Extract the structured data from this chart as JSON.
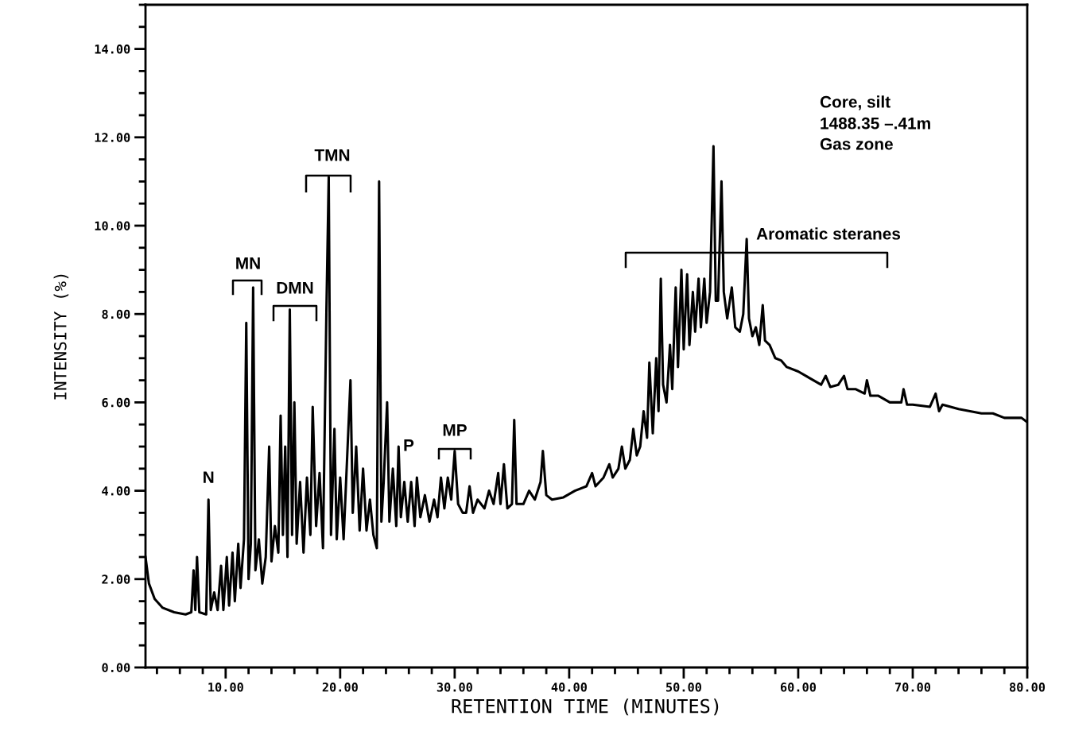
{
  "chart_data": {
    "type": "line",
    "xlabel": "RETENTION TIME (MINUTES)",
    "ylabel": "INTENSITY (%)",
    "xlim": [
      3,
      80
    ],
    "ylim": [
      0,
      15
    ],
    "xticks": [
      {
        "value": 10,
        "label": "10.00"
      },
      {
        "value": 20,
        "label": "20.00"
      },
      {
        "value": 30,
        "label": "30.00"
      },
      {
        "value": 40,
        "label": "40.00"
      },
      {
        "value": 50,
        "label": "50.00"
      },
      {
        "value": 60,
        "label": "60.00"
      },
      {
        "value": 70,
        "label": "70.00"
      },
      {
        "value": 80,
        "label": "80.00"
      }
    ],
    "yticks": [
      {
        "value": 0,
        "label": "0.00"
      },
      {
        "value": 2,
        "label": "2.00"
      },
      {
        "value": 4,
        "label": "4.00"
      },
      {
        "value": 6,
        "label": "6.00"
      },
      {
        "value": 8,
        "label": "8.00"
      },
      {
        "value": 10,
        "label": "10.00"
      },
      {
        "value": 12,
        "label": "12.00"
      },
      {
        "value": 14,
        "label": "14.00"
      }
    ],
    "grid": false,
    "legend": false,
    "marker": "none",
    "line_style": "solid",
    "series": [
      {
        "color": "#000000",
        "x": [
          3.0,
          3.3,
          3.8,
          4.5,
          5.5,
          6.5,
          7.0,
          7.2,
          7.35,
          7.5,
          7.7,
          8.3,
          8.5,
          8.7,
          9.0,
          9.3,
          9.6,
          9.8,
          10.1,
          10.3,
          10.6,
          10.8,
          11.1,
          11.3,
          11.6,
          11.8,
          12.0,
          12.2,
          12.4,
          12.6,
          12.9,
          13.2,
          13.5,
          13.8,
          14.0,
          14.3,
          14.6,
          14.8,
          15.0,
          15.2,
          15.4,
          15.6,
          15.8,
          16.0,
          16.2,
          16.5,
          16.8,
          17.1,
          17.4,
          17.6,
          17.9,
          18.2,
          18.5,
          18.8,
          19.0,
          19.2,
          19.5,
          19.7,
          20.0,
          20.3,
          20.7,
          20.9,
          21.1,
          21.4,
          21.7,
          22.0,
          22.3,
          22.6,
          22.9,
          23.2,
          23.4,
          23.6,
          23.8,
          24.1,
          24.3,
          24.6,
          24.9,
          25.1,
          25.3,
          25.6,
          25.9,
          26.2,
          26.5,
          26.7,
          27.0,
          27.4,
          27.8,
          28.2,
          28.5,
          28.8,
          29.1,
          29.4,
          29.7,
          30.0,
          30.3,
          30.7,
          31.0,
          31.3,
          31.6,
          32.0,
          32.6,
          33.0,
          33.4,
          33.8,
          34.0,
          34.3,
          34.6,
          35.0,
          35.2,
          35.4,
          36.0,
          36.5,
          37.0,
          37.5,
          37.7,
          38.0,
          38.5,
          39.5,
          40.5,
          41.5,
          42.0,
          42.3,
          43.0,
          43.5,
          43.8,
          44.3,
          44.6,
          44.9,
          45.3,
          45.6,
          45.9,
          46.2,
          46.5,
          46.8,
          47.0,
          47.3,
          47.6,
          47.8,
          48.0,
          48.2,
          48.5,
          48.8,
          49.0,
          49.3,
          49.5,
          49.8,
          50.0,
          50.3,
          50.5,
          50.8,
          51.0,
          51.3,
          51.5,
          51.8,
          52.0,
          52.3,
          52.6,
          52.8,
          53.0,
          53.3,
          53.5,
          53.8,
          54.2,
          54.5,
          54.9,
          55.2,
          55.5,
          55.7,
          56.0,
          56.3,
          56.6,
          56.9,
          57.1,
          57.5,
          58.0,
          58.5,
          59.0,
          60.0,
          61.0,
          62.0,
          62.4,
          62.8,
          63.5,
          64.0,
          64.3,
          65.0,
          65.8,
          66.0,
          66.3,
          67.0,
          68.0,
          69.0,
          69.2,
          69.5,
          70.0,
          71.5,
          72.0,
          72.3,
          72.6,
          74.0,
          75.0,
          76.0,
          77.0,
          78.0,
          79.5,
          80.0
        ],
        "values": [
          2.5,
          1.9,
          1.55,
          1.35,
          1.25,
          1.2,
          1.25,
          2.2,
          1.3,
          2.5,
          1.25,
          1.2,
          3.8,
          1.3,
          1.7,
          1.3,
          2.3,
          1.3,
          2.5,
          1.4,
          2.6,
          1.5,
          2.8,
          1.8,
          2.9,
          7.8,
          2.0,
          2.8,
          8.6,
          2.2,
          2.9,
          1.9,
          2.5,
          5.0,
          2.4,
          3.2,
          2.6,
          5.7,
          3.0,
          5.0,
          2.5,
          8.1,
          3.0,
          6.0,
          2.8,
          4.2,
          2.6,
          4.3,
          3.0,
          5.9,
          3.2,
          4.4,
          2.7,
          8.1,
          11.1,
          3.0,
          5.4,
          2.9,
          4.3,
          2.9,
          5.3,
          6.5,
          3.5,
          5.0,
          3.1,
          4.5,
          3.1,
          3.8,
          3.0,
          2.7,
          11.0,
          3.3,
          4.2,
          6.0,
          3.3,
          4.5,
          3.2,
          5.0,
          3.4,
          4.2,
          3.3,
          4.2,
          3.2,
          4.3,
          3.4,
          3.9,
          3.3,
          3.8,
          3.4,
          4.3,
          3.6,
          4.3,
          3.8,
          4.9,
          3.7,
          3.5,
          3.5,
          4.1,
          3.5,
          3.8,
          3.6,
          4.0,
          3.7,
          4.4,
          3.7,
          4.6,
          3.6,
          3.7,
          5.6,
          3.7,
          3.7,
          4.0,
          3.8,
          4.2,
          4.9,
          3.9,
          3.8,
          3.85,
          4.0,
          4.1,
          4.4,
          4.1,
          4.3,
          4.6,
          4.3,
          4.5,
          5.0,
          4.5,
          4.7,
          5.4,
          4.8,
          5.0,
          5.8,
          5.2,
          6.9,
          5.3,
          7.0,
          5.8,
          8.8,
          6.4,
          6.0,
          7.3,
          6.3,
          8.6,
          6.8,
          9.0,
          7.2,
          8.9,
          7.3,
          8.5,
          7.6,
          8.8,
          7.7,
          8.8,
          7.8,
          8.5,
          11.8,
          8.3,
          8.3,
          11.0,
          8.5,
          7.9,
          8.6,
          7.7,
          7.6,
          8.0,
          9.7,
          7.9,
          7.5,
          7.7,
          7.3,
          8.2,
          7.4,
          7.3,
          7.0,
          6.95,
          6.8,
          6.7,
          6.55,
          6.4,
          6.6,
          6.35,
          6.4,
          6.6,
          6.3,
          6.3,
          6.2,
          6.5,
          6.15,
          6.15,
          6.0,
          6.0,
          6.3,
          5.95,
          5.95,
          5.9,
          6.2,
          5.8,
          5.95,
          5.85,
          5.8,
          5.75,
          5.75,
          5.65,
          5.65,
          5.55
        ]
      }
    ],
    "annotations": [
      {
        "text": "N",
        "x": 8.5,
        "y": 3.8
      },
      "MN",
      "DMN",
      "TMN",
      "P",
      "MP",
      "Aromatic steranes",
      "Core, silt",
      "1488.35 –.41m",
      "Gas zone"
    ]
  }
}
